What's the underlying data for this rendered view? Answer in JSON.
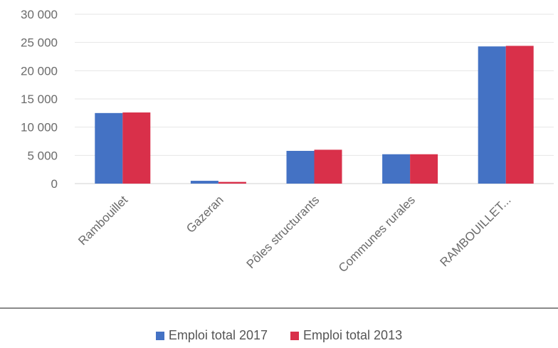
{
  "chart_data": {
    "type": "bar",
    "categories": [
      "Rambouillet",
      "Gazeran",
      "Pôles structurants",
      "Communes rurales",
      "RAMBOUILLET..."
    ],
    "series": [
      {
        "name": "Emploi total 2017",
        "color": "#4472c4",
        "values": [
          12500,
          500,
          5800,
          5200,
          24300
        ]
      },
      {
        "name": "Emploi total 2013",
        "color": "#d9304a",
        "values": [
          12600,
          300,
          6000,
          5200,
          24400
        ]
      }
    ],
    "ylim": [
      0,
      30000
    ],
    "yticks": [
      "0",
      "5 000",
      "10 000",
      "15 000",
      "20 000",
      "25 000",
      "30 000"
    ],
    "ytick_values": [
      0,
      5000,
      10000,
      15000,
      20000,
      25000,
      30000
    ],
    "grid": true,
    "legend_position": "bottom"
  }
}
